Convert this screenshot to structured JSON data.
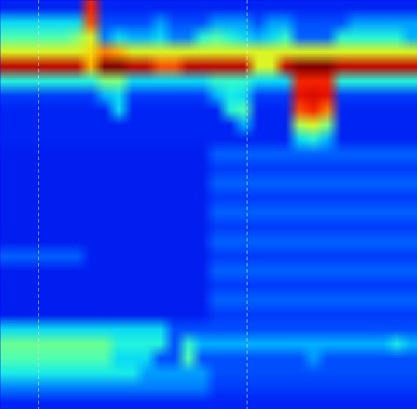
{
  "chart_data": {
    "type": "heatmap",
    "tick_labels": false,
    "xlim": [
      0,
      600
    ],
    "ylim": [
      0,
      588
    ],
    "vlines": [
      55,
      355
    ],
    "color_range": [
      0,
      1
    ],
    "cells": [
      [
        0.15,
        0.15,
        0.15,
        0.15,
        0.15,
        0.15,
        0.85,
        0.15,
        0.15,
        0.15,
        0.15,
        0.15,
        0.15,
        0.15,
        0.15,
        0.15,
        0.15,
        0.15,
        0.15,
        0.15,
        0.15,
        0.15,
        0.15,
        0.15,
        0.15,
        0.15,
        0.15,
        0.15,
        0.15,
        0.15
      ],
      [
        0.35,
        0.35,
        0.35,
        0.35,
        0.35,
        0.35,
        0.8,
        0.2,
        0.2,
        0.2,
        0.2,
        0.28,
        0.2,
        0.2,
        0.2,
        0.28,
        0.28,
        0.28,
        0.2,
        0.28,
        0.28,
        0.2,
        0.2,
        0.2,
        0.2,
        0.28,
        0.28,
        0.28,
        0.28,
        0.28
      ],
      [
        0.45,
        0.45,
        0.45,
        0.45,
        0.45,
        0.5,
        0.6,
        0.25,
        0.35,
        0.3,
        0.3,
        0.35,
        0.25,
        0.25,
        0.4,
        0.45,
        0.4,
        0.35,
        0.3,
        0.35,
        0.42,
        0.22,
        0.22,
        0.22,
        0.4,
        0.4,
        0.4,
        0.4,
        0.4,
        0.3
      ],
      [
        0.6,
        0.6,
        0.6,
        0.6,
        0.6,
        0.6,
        0.65,
        0.75,
        0.7,
        0.6,
        0.6,
        0.6,
        0.6,
        0.6,
        0.6,
        0.6,
        0.6,
        0.6,
        0.6,
        0.6,
        0.6,
        0.6,
        0.6,
        0.6,
        0.6,
        0.6,
        0.6,
        0.6,
        0.6,
        0.6
      ],
      [
        0.93,
        0.93,
        0.93,
        0.93,
        0.93,
        0.93,
        0.7,
        1,
        1,
        0.93,
        0.93,
        0.8,
        0.8,
        0.93,
        0.93,
        0.93,
        0.93,
        0.93,
        0.6,
        0.6,
        0.93,
        1,
        1,
        1,
        0.93,
        0.93,
        0.93,
        0.93,
        0.93,
        0.93
      ],
      [
        0.4,
        0.4,
        0.4,
        0.4,
        0.4,
        0.4,
        0.4,
        0.5,
        0.5,
        0.35,
        0.35,
        0.35,
        0.35,
        0.35,
        0.35,
        0.42,
        0.42,
        0.42,
        0.35,
        0.35,
        0.35,
        0.85,
        0.85,
        0.85,
        0.4,
        0.4,
        0.4,
        0.4,
        0.4,
        0.4
      ],
      [
        0.18,
        0.18,
        0.18,
        0.18,
        0.18,
        0.18,
        0.18,
        0.3,
        0.35,
        0.18,
        0.18,
        0.18,
        0.18,
        0.18,
        0.18,
        0.3,
        0.38,
        0.35,
        0.18,
        0.18,
        0.18,
        0.88,
        0.9,
        0.88,
        0.18,
        0.18,
        0.18,
        0.18,
        0.18,
        0.18
      ],
      [
        0.15,
        0.15,
        0.15,
        0.15,
        0.15,
        0.15,
        0.15,
        0.15,
        0.35,
        0.15,
        0.15,
        0.15,
        0.15,
        0.15,
        0.15,
        0.15,
        0.4,
        0.45,
        0.15,
        0.15,
        0.15,
        0.8,
        0.85,
        0.75,
        0.15,
        0.15,
        0.15,
        0.15,
        0.15,
        0.15
      ],
      [
        0.15,
        0.15,
        0.15,
        0.15,
        0.15,
        0.15,
        0.15,
        0.15,
        0.15,
        0.15,
        0.15,
        0.15,
        0.15,
        0.15,
        0.15,
        0.15,
        0.15,
        0.3,
        0.15,
        0.15,
        0.15,
        0.55,
        0.6,
        0.5,
        0.15,
        0.15,
        0.15,
        0.15,
        0.15,
        0.15
      ],
      [
        0.15,
        0.15,
        0.15,
        0.15,
        0.15,
        0.15,
        0.15,
        0.15,
        0.15,
        0.15,
        0.15,
        0.15,
        0.15,
        0.15,
        0.15,
        0.15,
        0.15,
        0.15,
        0.15,
        0.15,
        0.15,
        0.35,
        0.4,
        0.3,
        0.15,
        0.15,
        0.15,
        0.15,
        0.15,
        0.15
      ],
      [
        0.14,
        0.14,
        0.14,
        0.14,
        0.14,
        0.14,
        0.14,
        0.14,
        0.14,
        0.14,
        0.14,
        0.14,
        0.14,
        0.14,
        0.14,
        0.22,
        0.22,
        0.22,
        0.22,
        0.22,
        0.22,
        0.22,
        0.22,
        0.22,
        0.22,
        0.22,
        0.22,
        0.22,
        0.22,
        0.22
      ],
      [
        0.14,
        0.14,
        0.14,
        0.14,
        0.14,
        0.14,
        0.14,
        0.14,
        0.14,
        0.14,
        0.14,
        0.14,
        0.14,
        0.14,
        0.14,
        0.18,
        0.18,
        0.18,
        0.18,
        0.18,
        0.18,
        0.18,
        0.18,
        0.18,
        0.18,
        0.18,
        0.18,
        0.18,
        0.18,
        0.18
      ],
      [
        0.14,
        0.14,
        0.14,
        0.14,
        0.14,
        0.14,
        0.14,
        0.14,
        0.14,
        0.14,
        0.14,
        0.14,
        0.14,
        0.14,
        0.14,
        0.22,
        0.22,
        0.22,
        0.22,
        0.22,
        0.22,
        0.22,
        0.22,
        0.22,
        0.22,
        0.22,
        0.22,
        0.22,
        0.22,
        0.22
      ],
      [
        0.14,
        0.14,
        0.14,
        0.14,
        0.14,
        0.14,
        0.14,
        0.14,
        0.14,
        0.14,
        0.14,
        0.14,
        0.14,
        0.14,
        0.14,
        0.18,
        0.18,
        0.18,
        0.18,
        0.18,
        0.18,
        0.18,
        0.18,
        0.18,
        0.18,
        0.18,
        0.18,
        0.18,
        0.18,
        0.18
      ],
      [
        0.14,
        0.14,
        0.14,
        0.14,
        0.14,
        0.14,
        0.14,
        0.14,
        0.14,
        0.14,
        0.14,
        0.14,
        0.14,
        0.14,
        0.14,
        0.22,
        0.22,
        0.22,
        0.22,
        0.22,
        0.22,
        0.22,
        0.22,
        0.22,
        0.22,
        0.22,
        0.22,
        0.22,
        0.22,
        0.22
      ],
      [
        0.14,
        0.14,
        0.14,
        0.14,
        0.14,
        0.14,
        0.14,
        0.14,
        0.14,
        0.14,
        0.14,
        0.14,
        0.14,
        0.14,
        0.14,
        0.18,
        0.18,
        0.18,
        0.18,
        0.18,
        0.18,
        0.18,
        0.18,
        0.18,
        0.18,
        0.18,
        0.18,
        0.18,
        0.18,
        0.18
      ],
      [
        0.14,
        0.14,
        0.14,
        0.14,
        0.14,
        0.14,
        0.14,
        0.14,
        0.14,
        0.14,
        0.14,
        0.14,
        0.14,
        0.14,
        0.14,
        0.22,
        0.22,
        0.22,
        0.22,
        0.22,
        0.22,
        0.22,
        0.22,
        0.22,
        0.22,
        0.22,
        0.22,
        0.22,
        0.22,
        0.22
      ],
      [
        0.22,
        0.22,
        0.22,
        0.22,
        0.22,
        0.22,
        0.14,
        0.14,
        0.14,
        0.14,
        0.14,
        0.14,
        0.14,
        0.14,
        0.14,
        0.18,
        0.18,
        0.18,
        0.18,
        0.18,
        0.18,
        0.18,
        0.18,
        0.18,
        0.18,
        0.18,
        0.18,
        0.18,
        0.18,
        0.18
      ],
      [
        0.14,
        0.14,
        0.14,
        0.14,
        0.14,
        0.14,
        0.14,
        0.14,
        0.14,
        0.14,
        0.14,
        0.14,
        0.14,
        0.14,
        0.14,
        0.22,
        0.22,
        0.22,
        0.22,
        0.22,
        0.22,
        0.22,
        0.22,
        0.22,
        0.22,
        0.22,
        0.22,
        0.22,
        0.22,
        0.22
      ],
      [
        0.14,
        0.14,
        0.14,
        0.14,
        0.14,
        0.14,
        0.14,
        0.14,
        0.14,
        0.14,
        0.14,
        0.14,
        0.14,
        0.14,
        0.14,
        0.18,
        0.18,
        0.18,
        0.18,
        0.18,
        0.18,
        0.18,
        0.18,
        0.18,
        0.18,
        0.18,
        0.18,
        0.18,
        0.18,
        0.18
      ],
      [
        0.14,
        0.14,
        0.14,
        0.14,
        0.14,
        0.14,
        0.14,
        0.14,
        0.14,
        0.14,
        0.14,
        0.14,
        0.14,
        0.14,
        0.14,
        0.22,
        0.22,
        0.22,
        0.22,
        0.22,
        0.22,
        0.22,
        0.22,
        0.22,
        0.22,
        0.22,
        0.22,
        0.22,
        0.22,
        0.22
      ],
      [
        0.14,
        0.14,
        0.14,
        0.14,
        0.14,
        0.14,
        0.14,
        0.14,
        0.14,
        0.14,
        0.14,
        0.14,
        0.14,
        0.14,
        0.14,
        0.18,
        0.18,
        0.18,
        0.18,
        0.18,
        0.18,
        0.18,
        0.18,
        0.18,
        0.18,
        0.18,
        0.18,
        0.18,
        0.18,
        0.18
      ],
      [
        0.35,
        0.35,
        0.35,
        0.35,
        0.35,
        0.35,
        0.35,
        0.35,
        0.35,
        0.35,
        0.35,
        0.35,
        0.2,
        0.2,
        0.2,
        0.2,
        0.2,
        0.2,
        0.2,
        0.2,
        0.2,
        0.2,
        0.2,
        0.2,
        0.2,
        0.2,
        0.2,
        0.2,
        0.2,
        0.2
      ],
      [
        0.48,
        0.48,
        0.48,
        0.48,
        0.48,
        0.48,
        0.48,
        0.48,
        0.4,
        0.4,
        0.4,
        0.4,
        0.2,
        0.42,
        0.3,
        0.3,
        0.3,
        0.3,
        0.3,
        0.3,
        0.3,
        0.3,
        0.3,
        0.3,
        0.3,
        0.3,
        0.3,
        0.3,
        0.38,
        0.3
      ],
      [
        0.45,
        0.45,
        0.45,
        0.45,
        0.45,
        0.45,
        0.45,
        0.45,
        0.35,
        0.35,
        0.35,
        0.2,
        0.2,
        0.45,
        0.2,
        0.2,
        0.2,
        0.2,
        0.2,
        0.2,
        0.2,
        0.2,
        0.28,
        0.2,
        0.2,
        0.2,
        0.2,
        0.2,
        0.2,
        0.2
      ],
      [
        0.38,
        0.38,
        0.38,
        0.38,
        0.38,
        0.38,
        0.38,
        0.38,
        0.38,
        0.38,
        0.28,
        0.28,
        0.28,
        0.28,
        0.28,
        0.2,
        0.2,
        0.2,
        0.2,
        0.2,
        0.2,
        0.2,
        0.2,
        0.2,
        0.2,
        0.2,
        0.2,
        0.2,
        0.2,
        0.2
      ],
      [
        0.25,
        0.25,
        0.25,
        0.25,
        0.25,
        0.25,
        0.25,
        0.25,
        0.25,
        0.25,
        0.25,
        0.25,
        0.25,
        0.25,
        0.25,
        0.18,
        0.18,
        0.18,
        0.18,
        0.18,
        0.18,
        0.18,
        0.18,
        0.18,
        0.18,
        0.18,
        0.18,
        0.18,
        0.18,
        0.18
      ],
      [
        0.15,
        0.15,
        0.15,
        0.15,
        0.15,
        0.15,
        0.15,
        0.15,
        0.15,
        0.15,
        0.15,
        0.15,
        0.15,
        0.15,
        0.15,
        0.15,
        0.15,
        0.15,
        0.15,
        0.15,
        0.15,
        0.15,
        0.15,
        0.15,
        0.15,
        0.15,
        0.15,
        0.15,
        0.15,
        0.15
      ]
    ]
  }
}
